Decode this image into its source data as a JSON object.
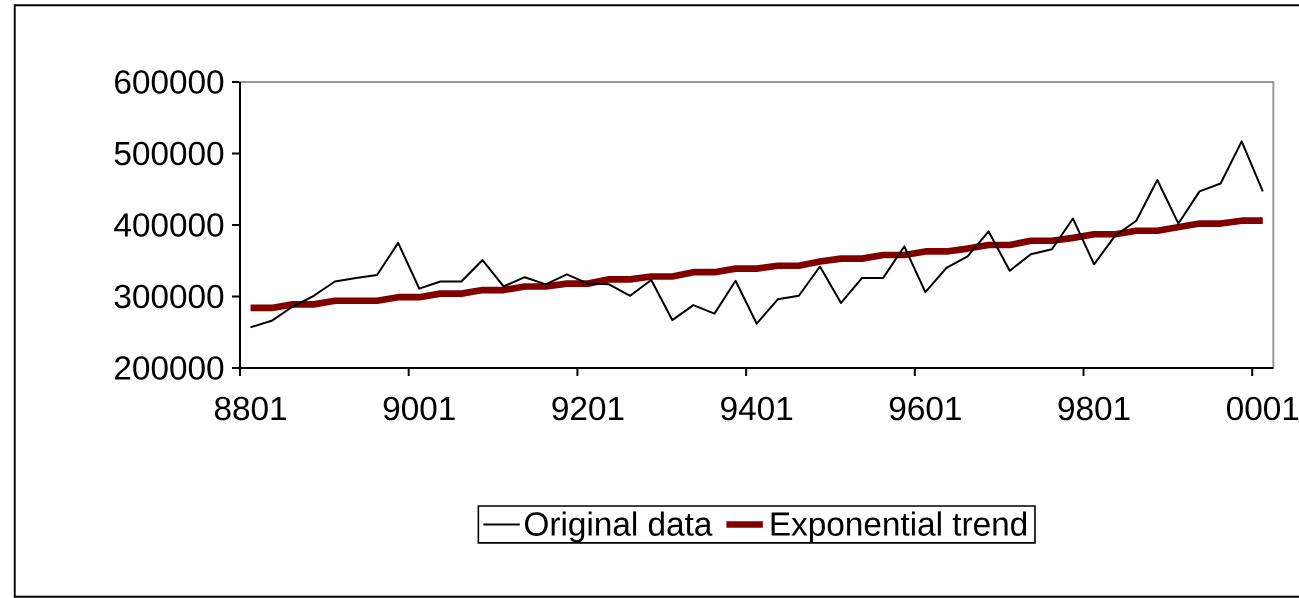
{
  "chart_data": {
    "type": "line",
    "categories": [
      "8801",
      null,
      null,
      null,
      null,
      null,
      null,
      null,
      "9001",
      null,
      null,
      null,
      null,
      null,
      null,
      null,
      "9201",
      null,
      null,
      null,
      null,
      null,
      null,
      null,
      "9401",
      null,
      null,
      null,
      null,
      null,
      null,
      null,
      "9601",
      null,
      null,
      null,
      null,
      null,
      null,
      null,
      "9801",
      null,
      null,
      null,
      null,
      null,
      null,
      null,
      "0001"
    ],
    "series": [
      {
        "name": "Original data",
        "color": "#000000",
        "values": [
          257000,
          266000,
          286000,
          301000,
          321000,
          326000,
          330000,
          375000,
          311000,
          321000,
          321000,
          351000,
          314000,
          327000,
          317000,
          331000,
          318000,
          317000,
          301000,
          323000,
          267000,
          288000,
          276000,
          322000,
          262000,
          296000,
          301000,
          342000,
          291000,
          326000,
          326000,
          370000,
          306000,
          340000,
          356000,
          391000,
          336000,
          359000,
          366000,
          409000,
          345000,
          385000,
          406000,
          463000,
          402000,
          447000,
          458000,
          517000,
          447000
        ]
      },
      {
        "name": "Exponential trend",
        "color": "#800000",
        "values": [
          284000,
          284000,
          289000,
          289000,
          294000,
          294000,
          294000,
          299000,
          299000,
          304000,
          304000,
          309000,
          309000,
          314000,
          314000,
          318000,
          318000,
          324000,
          324000,
          328000,
          328000,
          334000,
          334000,
          339000,
          339000,
          343000,
          343000,
          349000,
          353000,
          353000,
          358000,
          358000,
          363000,
          363000,
          367000,
          372000,
          372000,
          378000,
          378000,
          382000,
          387000,
          387000,
          392000,
          392000,
          397000,
          402000,
          402000,
          406000,
          406000
        ]
      }
    ],
    "ylim": [
      200000,
      600000
    ],
    "yticks": [
      200000,
      300000,
      400000,
      500000,
      600000
    ],
    "grid": false,
    "legend": "bottom",
    "marker": "none",
    "line_style": "solid"
  }
}
